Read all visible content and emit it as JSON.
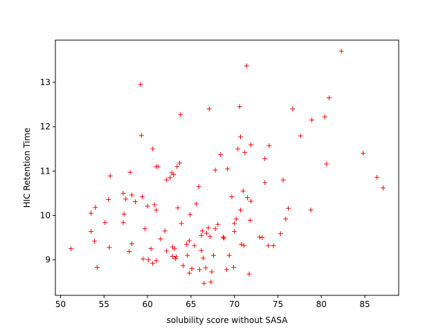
{
  "chart_data": {
    "type": "scatter",
    "title": "",
    "xlabel": "solubility score without SASA",
    "ylabel": "HIC Retention Time",
    "xlim": [
      49.4,
      88.9
    ],
    "ylim": [
      8.2,
      13.95
    ],
    "xticks": [
      50,
      55,
      60,
      65,
      70,
      75,
      80,
      85
    ],
    "yticks": [
      9,
      10,
      11,
      12,
      13
    ],
    "grid": false,
    "legend": "none",
    "marker": "+",
    "color": "#ff0000",
    "series": [
      {
        "points": [
          [
            51.2,
            9.25
          ],
          [
            53.5,
            9.64
          ],
          [
            53.5,
            10.05
          ],
          [
            53.9,
            9.42
          ],
          [
            54.0,
            10.18
          ],
          [
            54.2,
            8.83
          ],
          [
            55.1,
            9.84
          ],
          [
            55.5,
            10.36
          ],
          [
            55.6,
            9.28
          ],
          [
            55.7,
            10.89
          ],
          [
            57.2,
            10.5
          ],
          [
            57.2,
            9.84
          ],
          [
            57.3,
            10.03
          ],
          [
            57.5,
            10.37
          ],
          [
            57.9,
            9.19
          ],
          [
            58.0,
            10.97
          ],
          [
            58.2,
            10.46
          ],
          [
            58.2,
            9.36
          ],
          [
            58.6,
            10.31
          ],
          [
            59.2,
            12.95
          ],
          [
            59.3,
            11.8
          ],
          [
            59.4,
            10.42
          ],
          [
            59.5,
            9.02
          ],
          [
            59.7,
            9.7
          ],
          [
            60.0,
            10.21
          ],
          [
            60.1,
            9.0
          ],
          [
            60.4,
            9.25
          ],
          [
            60.6,
            11.5
          ],
          [
            60.6,
            8.92
          ],
          [
            60.8,
            10.24
          ],
          [
            61.0,
            11.1
          ],
          [
            61.0,
            10.12
          ],
          [
            61.0,
            8.98
          ],
          [
            61.2,
            11.1
          ],
          [
            61.5,
            9.47
          ],
          [
            62.0,
            9.65
          ],
          [
            62.2,
            10.8
          ],
          [
            62.2,
            9.2
          ],
          [
            62.6,
            10.85
          ],
          [
            62.8,
            10.96
          ],
          [
            62.9,
            9.29
          ],
          [
            62.9,
            9.08
          ],
          [
            63.0,
            10.92
          ],
          [
            63.1,
            9.25
          ],
          [
            63.2,
            9.03
          ],
          [
            63.3,
            9.07
          ],
          [
            63.4,
            11.1
          ],
          [
            63.5,
            10.17
          ],
          [
            63.7,
            11.18
          ],
          [
            63.8,
            12.27
          ],
          [
            63.9,
            9.82
          ],
          [
            64.1,
            8.87
          ],
          [
            64.5,
            9.35
          ],
          [
            64.6,
            9.1
          ],
          [
            64.8,
            8.7
          ],
          [
            64.8,
            9.43
          ],
          [
            64.9,
            10.02
          ],
          [
            65.1,
            8.8
          ],
          [
            65.4,
            9.32
          ],
          [
            65.6,
            10.26
          ],
          [
            65.9,
            10.65
          ],
          [
            66.0,
            8.78
          ],
          [
            66.2,
            9.21
          ],
          [
            66.2,
            9.55
          ],
          [
            66.3,
            9.65
          ],
          [
            66.4,
            9.04
          ],
          [
            66.5,
            8.47
          ],
          [
            66.7,
            8.82
          ],
          [
            66.8,
            9.6
          ],
          [
            67.0,
            9.72
          ],
          [
            67.1,
            12.4
          ],
          [
            67.2,
            9.52
          ],
          [
            67.3,
            8.5
          ],
          [
            67.4,
            8.73
          ],
          [
            67.6,
            9.1
          ],
          [
            67.8,
            9.7
          ],
          [
            67.8,
            11.02
          ],
          [
            68.1,
            9.8
          ],
          [
            68.4,
            11.37
          ],
          [
            68.7,
            9.51
          ],
          [
            68.8,
            9.49
          ],
          [
            69.1,
            8.78
          ],
          [
            69.2,
            11.05
          ],
          [
            69.4,
            9.1
          ],
          [
            69.7,
            10.42
          ],
          [
            69.9,
            8.83
          ],
          [
            70.0,
            9.64
          ],
          [
            70.0,
            9.82
          ],
          [
            70.2,
            9.92
          ],
          [
            70.4,
            11.5
          ],
          [
            70.6,
            12.45
          ],
          [
            70.7,
            11.77
          ],
          [
            70.7,
            10.12
          ],
          [
            70.8,
            9.35
          ],
          [
            71.0,
            10.55
          ],
          [
            71.1,
            9.32
          ],
          [
            71.2,
            11.42
          ],
          [
            71.4,
            13.37
          ],
          [
            71.5,
            10.4
          ],
          [
            71.7,
            8.68
          ],
          [
            71.8,
            9.89
          ],
          [
            71.9,
            10.32
          ],
          [
            71.9,
            11.59
          ],
          [
            72.9,
            9.51
          ],
          [
            73.2,
            9.5
          ],
          [
            73.5,
            10.74
          ],
          [
            73.5,
            11.28
          ],
          [
            73.9,
            9.32
          ],
          [
            74.0,
            11.57
          ],
          [
            74.5,
            9.32
          ],
          [
            75.3,
            9.59
          ],
          [
            75.6,
            10.8
          ],
          [
            75.9,
            9.92
          ],
          [
            76.2,
            10.16
          ],
          [
            76.7,
            12.4
          ],
          [
            77.6,
            11.79
          ],
          [
            78.8,
            10.12
          ],
          [
            78.9,
            12.15
          ],
          [
            80.4,
            12.22
          ],
          [
            80.6,
            11.16
          ],
          [
            80.9,
            12.65
          ],
          [
            82.3,
            13.7
          ],
          [
            84.8,
            11.4
          ],
          [
            86.4,
            10.86
          ],
          [
            87.1,
            10.62
          ]
        ]
      }
    ]
  }
}
